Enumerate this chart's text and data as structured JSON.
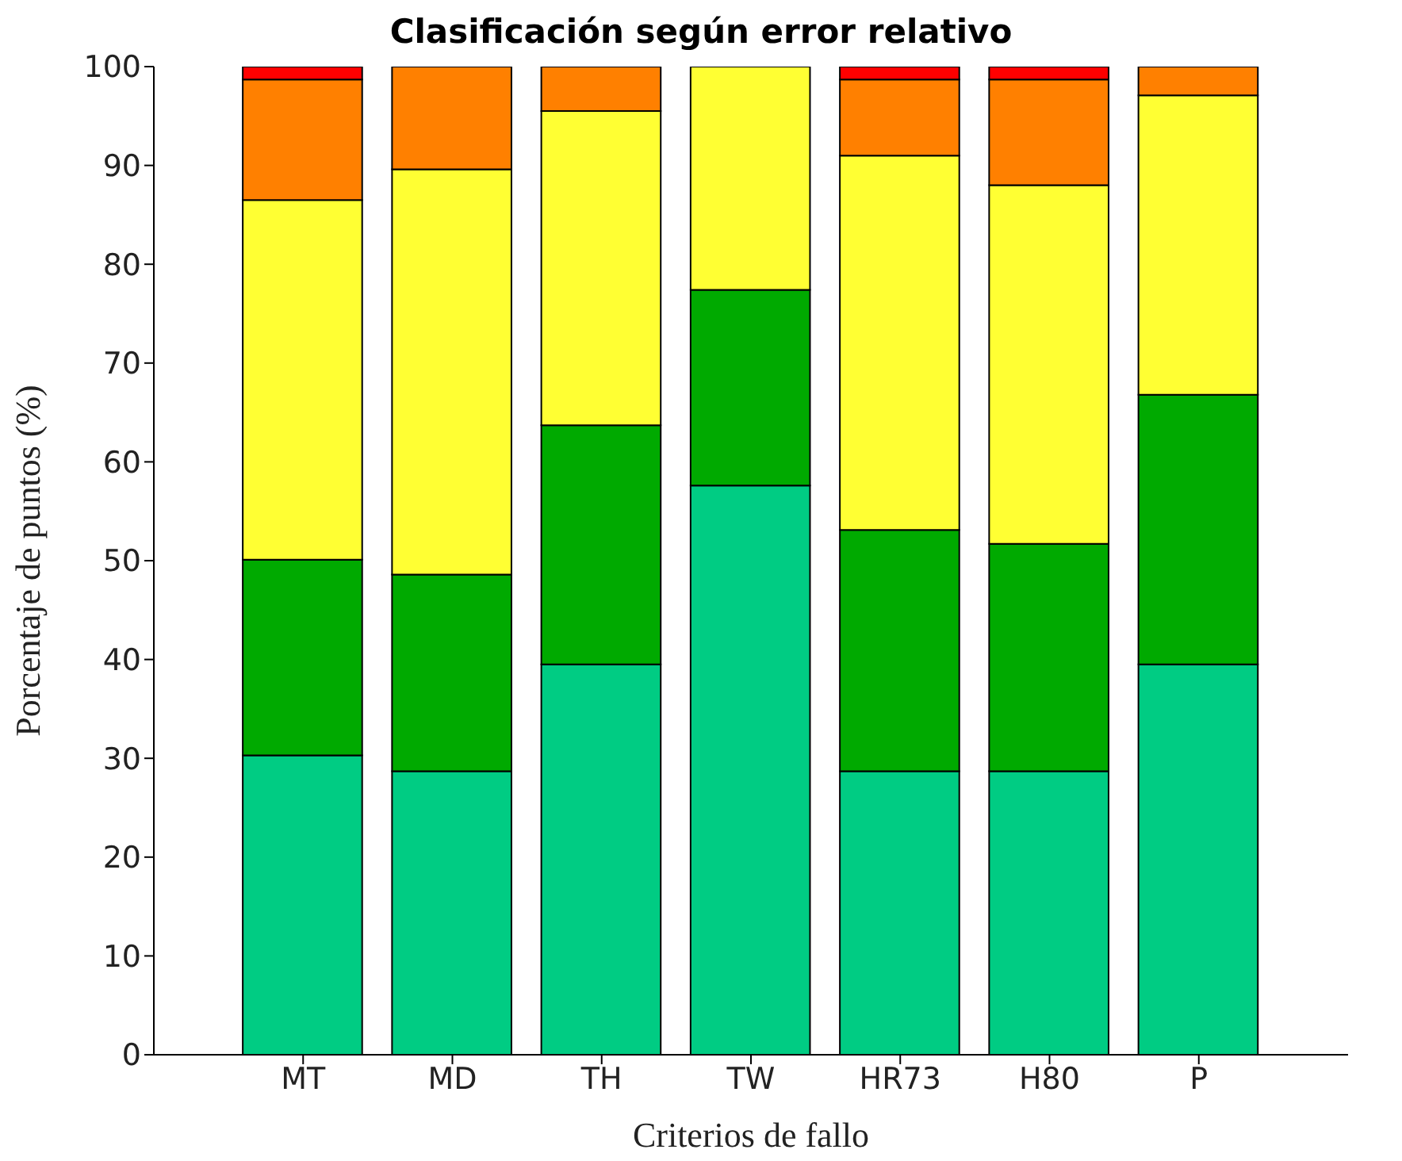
{
  "chart_data": {
    "type": "bar",
    "title": "Clasificación según error relativo",
    "xlabel": "Criterios de fallo",
    "ylabel": "Porcentaje de puntos (%)",
    "categories": [
      "MT",
      "MD",
      "TH",
      "TW",
      "HR73",
      "H80",
      "P"
    ],
    "stacked": true,
    "ylim": [
      0,
      100
    ],
    "yticks": [
      0,
      10,
      20,
      30,
      40,
      50,
      60,
      70,
      80,
      90,
      100
    ],
    "series": [
      {
        "color": "#00cc83",
        "values": [
          30.3,
          28.7,
          39.5,
          57.6,
          28.7,
          28.7,
          39.5
        ]
      },
      {
        "color": "#00aa00",
        "values": [
          19.8,
          19.9,
          24.2,
          19.8,
          24.4,
          23.0,
          27.3
        ]
      },
      {
        "color": "#ffff33",
        "values": [
          36.4,
          41.0,
          31.8,
          22.6,
          37.9,
          36.3,
          30.3
        ]
      },
      {
        "color": "#ff8000",
        "values": [
          12.2,
          10.4,
          4.5,
          0,
          7.7,
          10.7,
          2.9
        ]
      },
      {
        "color": "#ff0000",
        "values": [
          1.3,
          0,
          0,
          0,
          1.3,
          1.3,
          0
        ]
      }
    ]
  }
}
